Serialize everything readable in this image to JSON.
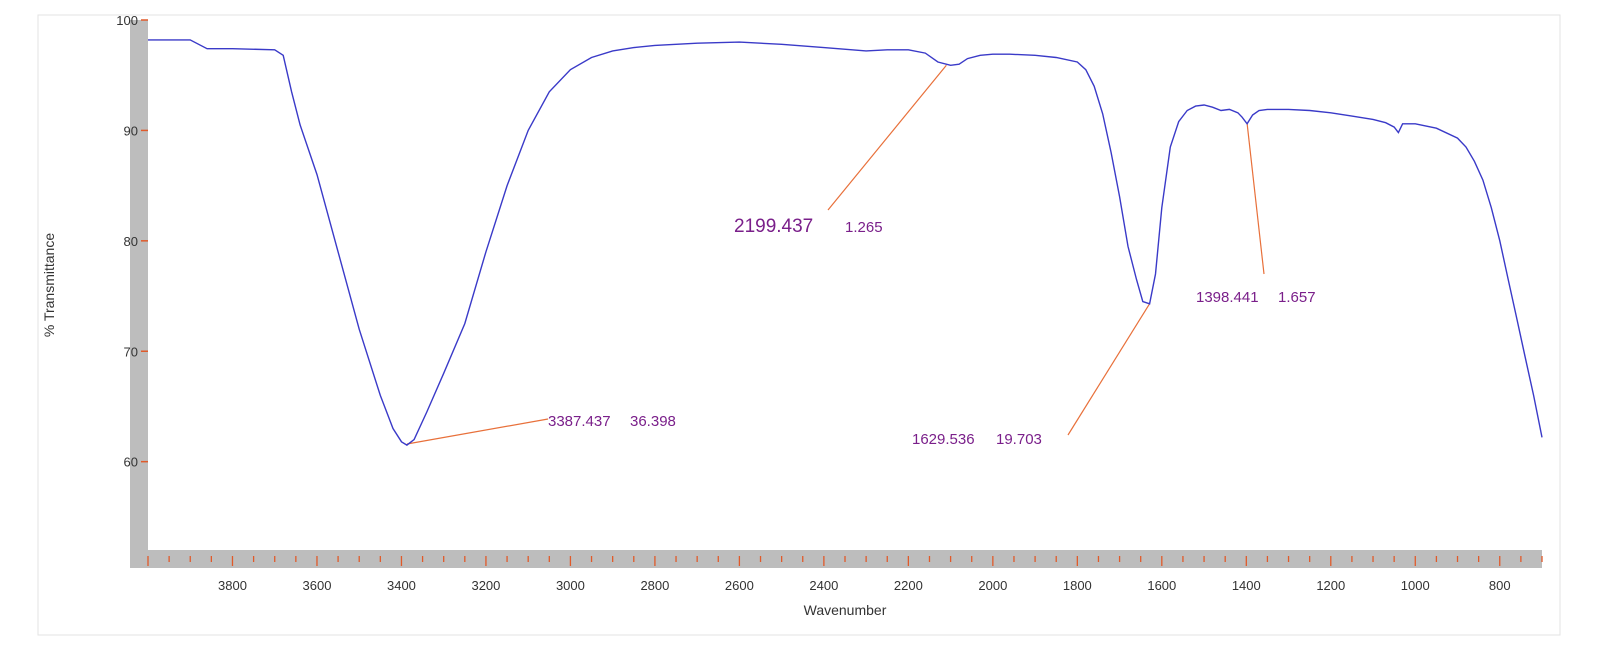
{
  "chart_data": {
    "type": "line",
    "xlabel": "Wavenumber",
    "ylabel": "% Transmittance",
    "xlim": [
      4000,
      700
    ],
    "ylim": [
      52,
      100
    ],
    "x_ticks": [
      3800,
      3600,
      3400,
      3200,
      3000,
      2800,
      2600,
      2400,
      2200,
      2000,
      1800,
      1600,
      1400,
      1200,
      1000,
      800
    ],
    "y_ticks": [
      60,
      70,
      80,
      90,
      100
    ],
    "grid": false,
    "colors": {
      "line": "#3a3ac8",
      "leader": "#e8703a",
      "annotation": "#7a1f8a",
      "axis_band": "#bdbdbd"
    },
    "series": [
      {
        "x": [
          4000,
          3900,
          3860,
          3800,
          3700,
          3680,
          3660,
          3640,
          3600,
          3550,
          3500,
          3450,
          3420,
          3400,
          3387,
          3370,
          3340,
          3300,
          3250,
          3200,
          3150,
          3100,
          3050,
          3000,
          2950,
          2900,
          2850,
          2800,
          2700,
          2600,
          2500,
          2400,
          2300,
          2250,
          2200,
          2160,
          2130,
          2100,
          2080,
          2060,
          2030,
          2000,
          1960,
          1900,
          1850,
          1800,
          1780,
          1760,
          1740,
          1720,
          1700,
          1680,
          1660,
          1645,
          1629,
          1615,
          1600,
          1580,
          1560,
          1540,
          1520,
          1500,
          1480,
          1460,
          1440,
          1420,
          1410,
          1398,
          1385,
          1370,
          1350,
          1300,
          1250,
          1200,
          1150,
          1100,
          1070,
          1050,
          1040,
          1030,
          1000,
          950,
          900,
          880,
          860,
          840,
          820,
          800,
          780,
          760,
          740,
          720,
          700
        ],
        "values": [
          98.2,
          98.2,
          97.4,
          97.4,
          97.3,
          96.8,
          93.5,
          90.5,
          86,
          79,
          72,
          66,
          63,
          61.8,
          61.5,
          62,
          64.5,
          68,
          72.5,
          79,
          85,
          90,
          93.5,
          95.5,
          96.6,
          97.2,
          97.5,
          97.7,
          97.9,
          98.0,
          97.8,
          97.5,
          97.2,
          97.3,
          97.3,
          97,
          96.2,
          95.9,
          96.0,
          96.5,
          96.8,
          96.9,
          96.9,
          96.8,
          96.6,
          96.2,
          95.5,
          94,
          91.5,
          88,
          84,
          79.5,
          76.5,
          74.5,
          74.3,
          77,
          83,
          88.5,
          90.8,
          91.8,
          92.2,
          92.3,
          92.1,
          91.8,
          91.9,
          91.6,
          91.2,
          90.6,
          91.4,
          91.8,
          91.9,
          91.9,
          91.8,
          91.6,
          91.3,
          91.0,
          90.7,
          90.3,
          89.8,
          90.6,
          90.6,
          90.2,
          89.3,
          88.5,
          87.2,
          85.5,
          83,
          80,
          76.5,
          73,
          69.5,
          66,
          62.2
        ]
      }
    ],
    "annotations": [
      {
        "label": "3387.437",
        "value": "36.398",
        "x": 3387,
        "y": 61.6
      },
      {
        "label": "2199.437",
        "value": "1.265",
        "x": 2110,
        "y": 95.9
      },
      {
        "label": "1629.536",
        "value": "19.703",
        "x": 1629,
        "y": 74.3
      },
      {
        "label": "1398.441",
        "value": "1.657",
        "x": 1398,
        "y": 90.6
      }
    ]
  }
}
